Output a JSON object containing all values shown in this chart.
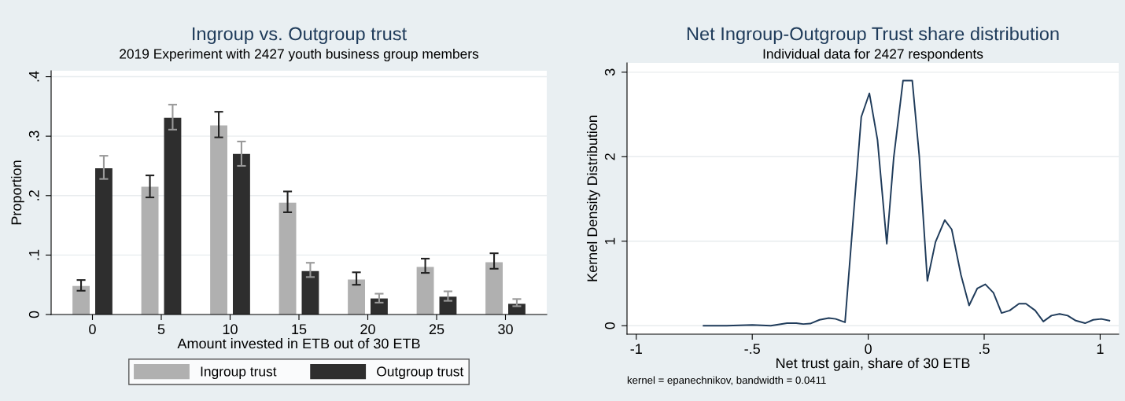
{
  "chart_data": [
    {
      "type": "bar",
      "title": "Ingroup vs. Outgroup trust",
      "subtitle": "2019 Experiment with 2427 youth business group members",
      "xlabel": "Amount invested in ETB out of 30 ETB",
      "ylabel": "Proportion",
      "categories": [
        "0",
        "5",
        "10",
        "15",
        "20",
        "25",
        "30"
      ],
      "series": [
        {
          "name": "Ingroup trust",
          "color": "#b0b0b0",
          "values": [
            0.048,
            0.215,
            0.318,
            0.188,
            0.059,
            0.08,
            0.088
          ],
          "errors": [
            [
              0.04,
              0.058
            ],
            [
              0.197,
              0.234
            ],
            [
              0.298,
              0.341
            ],
            [
              0.172,
              0.207
            ],
            [
              0.05,
              0.071
            ],
            [
              0.07,
              0.094
            ],
            [
              0.077,
              0.103
            ]
          ]
        },
        {
          "name": "Outgroup trust",
          "color": "#2e2e2e",
          "values": [
            0.246,
            0.331,
            0.27,
            0.073,
            0.027,
            0.03,
            0.018
          ],
          "errors": [
            [
              0.228,
              0.267
            ],
            [
              0.311,
              0.353
            ],
            [
              0.25,
              0.291
            ],
            [
              0.063,
              0.087
            ],
            [
              0.02,
              0.035
            ],
            [
              0.023,
              0.039
            ],
            [
              0.014,
              0.026
            ]
          ]
        }
      ],
      "ylim": [
        0,
        0.41
      ],
      "yticks": [
        0,
        {
          "value": 0.1,
          "label": ".1"
        },
        {
          "value": 0.2,
          "label": ".2"
        },
        {
          "value": 0.3,
          "label": ".3"
        },
        {
          "value": 0.4,
          "label": ".4"
        }
      ],
      "grid": "y",
      "legend": "bottom"
    },
    {
      "type": "line",
      "title": "Net Ingroup-Outgroup Trust share distribution",
      "subtitle": "Individual data for 2427 respondents",
      "xlabel": "Net trust gain, share of 30 ETB",
      "ylabel": "Kernel Density Distribution",
      "annotations": [
        "kernel = epanechnikov, bandwidth = 0.0411"
      ],
      "series": [
        {
          "color": "#1f3b5a",
          "x": [
            -0.71,
            -0.61,
            -0.5,
            -0.42,
            -0.35,
            -0.31,
            -0.28,
            -0.25,
            -0.21,
            -0.17,
            -0.14,
            -0.1,
            -0.03,
            0.005,
            0.04,
            0.08,
            0.11,
            0.15,
            0.19,
            0.22,
            0.255,
            0.29,
            0.33,
            0.36,
            0.4,
            0.435,
            0.47,
            0.505,
            0.54,
            0.575,
            0.61,
            0.65,
            0.68,
            0.72,
            0.755,
            0.79,
            0.825,
            0.86,
            0.895,
            0.935,
            0.97,
            1.005,
            1.04
          ],
          "values": [
            0.0,
            0.0,
            0.01,
            0.0,
            0.03,
            0.03,
            0.02,
            0.025,
            0.07,
            0.09,
            0.08,
            0.04,
            2.47,
            2.75,
            2.2,
            0.97,
            1.99,
            2.9,
            2.9,
            2.01,
            0.53,
            0.99,
            1.25,
            1.14,
            0.6,
            0.24,
            0.44,
            0.49,
            0.39,
            0.15,
            0.18,
            0.26,
            0.26,
            0.18,
            0.05,
            0.12,
            0.14,
            0.12,
            0.06,
            0.03,
            0.07,
            0.08,
            0.06
          ]
        }
      ],
      "xlim": [
        -1.04,
        1.08
      ],
      "xticks": [
        -1,
        {
          "value": -0.5,
          "label": "-.5"
        },
        0,
        {
          "value": 0.5,
          "label": ".5"
        },
        1
      ],
      "ylim": [
        -0.1,
        3.11
      ],
      "yticks": [
        0,
        1,
        2,
        3
      ],
      "grid": "y",
      "marker": "none"
    }
  ]
}
